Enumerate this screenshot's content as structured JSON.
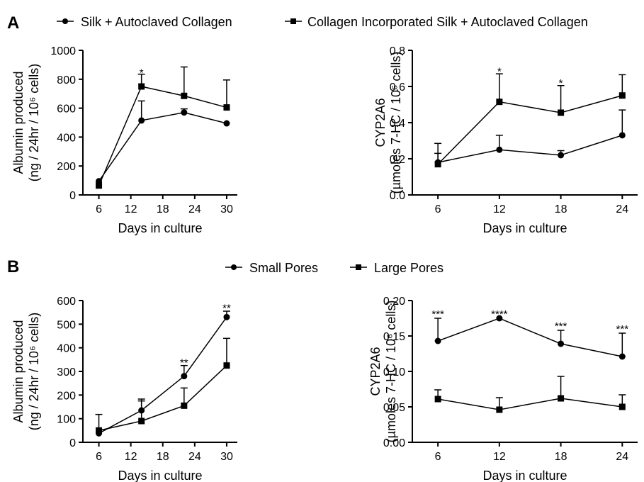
{
  "panel_labels": [
    "A",
    "B"
  ],
  "legends": {
    "A": [
      "Silk + Autoclaved Collagen",
      "Collagen Incorporated Silk + Autoclaved Collagen"
    ],
    "B": [
      "Small Pores",
      "Large Pores"
    ]
  },
  "chart_data": [
    {
      "id": "A1",
      "type": "line",
      "xlabel": "Days in culture",
      "ylabel_line1": "Albumin produced",
      "ylabel_line2": "(ng / 24hr / 10⁶ cells)",
      "xlim": [
        3,
        32
      ],
      "ylim": [
        0,
        1000
      ],
      "xticks": [
        6,
        12,
        18,
        24,
        30
      ],
      "yticks": [
        0,
        200,
        400,
        600,
        800,
        1000
      ],
      "ytick_labels": [
        "0",
        "200",
        "400",
        "600",
        "800",
        "1000"
      ],
      "series": [
        {
          "name": "Silk + Autoclaved Collagen",
          "marker": "circle",
          "x": [
            6,
            14,
            22,
            30
          ],
          "y": [
            95,
            515,
            570,
            495
          ],
          "err": [
            0,
            135,
            25,
            0
          ]
        },
        {
          "name": "Collagen Incorporated Silk + Autoclaved Collagen",
          "marker": "square",
          "x": [
            6,
            14,
            22,
            30
          ],
          "y": [
            65,
            750,
            685,
            605
          ],
          "err": [
            0,
            85,
            200,
            190
          ]
        }
      ],
      "annotations": [
        {
          "x": 14,
          "y": 840,
          "text": "*"
        }
      ]
    },
    {
      "id": "A2",
      "type": "line",
      "xlabel": "Days in culture",
      "ylabel_line1": "CYP2A6",
      "ylabel_line2": "(µmoles 7-HC / 10⁶ cells)",
      "xlim": [
        3.5,
        25.5
      ],
      "ylim": [
        0,
        0.8
      ],
      "xticks": [
        6,
        12,
        18,
        24
      ],
      "yticks": [
        0,
        0.2,
        0.4,
        0.6,
        0.8
      ],
      "ytick_labels": [
        "0.0",
        "0.2",
        "0.4",
        "0.6",
        "0.8"
      ],
      "series": [
        {
          "name": "Silk + Autoclaved Collagen",
          "marker": "circle",
          "x": [
            6,
            12,
            18,
            24
          ],
          "y": [
            0.18,
            0.25,
            0.22,
            0.33
          ],
          "err": [
            0.05,
            0.08,
            0.025,
            0.14
          ]
        },
        {
          "name": "Collagen Incorporated Silk + Autoclaved Collagen",
          "marker": "square",
          "x": [
            6,
            12,
            18,
            24
          ],
          "y": [
            0.17,
            0.515,
            0.455,
            0.55
          ],
          "err": [
            0.115,
            0.155,
            0.15,
            0.115
          ]
        }
      ],
      "annotations": [
        {
          "x": 12,
          "y": 0.68,
          "text": "*"
        },
        {
          "x": 18,
          "y": 0.615,
          "text": "*"
        }
      ]
    },
    {
      "id": "B1",
      "type": "line",
      "xlabel": "Days in culture",
      "ylabel_line1": "Albumin produced",
      "ylabel_line2": "(ng / 24hr / 10⁶ cells)",
      "xlim": [
        3,
        32
      ],
      "ylim": [
        0,
        600
      ],
      "xticks": [
        6,
        12,
        18,
        24,
        30
      ],
      "yticks": [
        0,
        100,
        200,
        300,
        400,
        500,
        600
      ],
      "ytick_labels": [
        "0",
        "100",
        "200",
        "300",
        "400",
        "500",
        "600"
      ],
      "series": [
        {
          "name": "Small Pores",
          "marker": "circle",
          "x": [
            6,
            14,
            22,
            30
          ],
          "y": [
            38,
            135,
            280,
            530
          ],
          "err": [
            80,
            48,
            45,
            25
          ]
        },
        {
          "name": "Large Pores",
          "marker": "square",
          "x": [
            6,
            14,
            22,
            30
          ],
          "y": [
            50,
            90,
            155,
            325
          ],
          "err": [
            0,
            85,
            75,
            115
          ]
        }
      ],
      "annotations": [
        {
          "x": 22,
          "y": 335,
          "text": "**"
        },
        {
          "x": 30,
          "y": 565,
          "text": "**"
        }
      ]
    },
    {
      "id": "B2",
      "type": "line",
      "xlabel": "Days in culture",
      "ylabel_line1": "CYP2A6",
      "ylabel_line2": "(µmoles 7-HC / 10⁶ cells)",
      "xlim": [
        3.5,
        25.5
      ],
      "ylim": [
        0,
        0.2
      ],
      "xticks": [
        6,
        12,
        18,
        24
      ],
      "yticks": [
        0,
        0.05,
        0.1,
        0.15,
        0.2
      ],
      "ytick_labels": [
        "0.00",
        "0.05",
        "0.10",
        "0.15",
        "0.20"
      ],
      "series": [
        {
          "name": "Small Pores",
          "marker": "circle",
          "x": [
            6,
            12,
            18,
            24
          ],
          "y": [
            0.143,
            0.175,
            0.139,
            0.121
          ],
          "err": [
            0.032,
            0,
            0.019,
            0.033
          ]
        },
        {
          "name": "Large Pores",
          "marker": "square",
          "x": [
            6,
            12,
            18,
            24
          ],
          "y": [
            0.061,
            0.046,
            0.062,
            0.05
          ],
          "err": [
            0.013,
            0.017,
            0.031,
            0.017
          ]
        }
      ],
      "annotations": [
        {
          "x": 6,
          "y": 0.18,
          "text": "***"
        },
        {
          "x": 12,
          "y": 0.18,
          "text": "****"
        },
        {
          "x": 18,
          "y": 0.163,
          "text": "***"
        },
        {
          "x": 24,
          "y": 0.159,
          "text": "***"
        }
      ]
    }
  ]
}
